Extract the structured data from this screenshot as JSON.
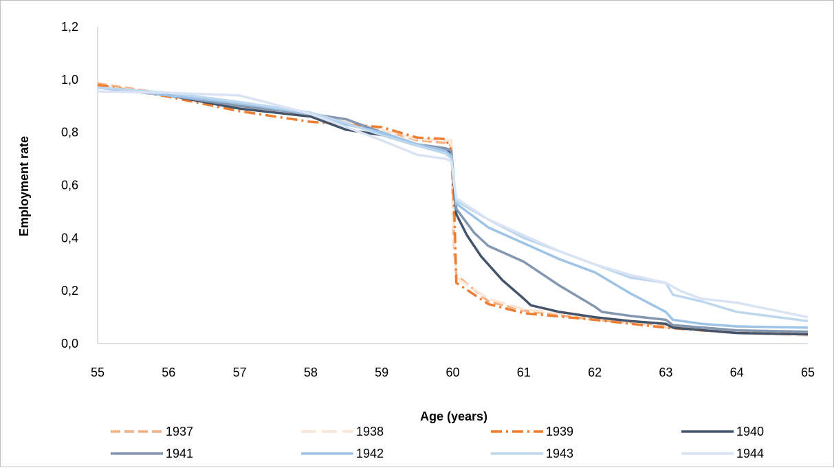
{
  "chart_data": {
    "type": "line",
    "xlabel": "Age (years)",
    "ylabel": "Employment rate",
    "xlim": [
      55,
      65
    ],
    "ylim": [
      0.0,
      1.2
    ],
    "x_ticks": [
      55,
      56,
      57,
      58,
      59,
      60,
      61,
      62,
      63,
      64,
      65
    ],
    "x_tick_labels": [
      "55",
      "56",
      "57",
      "58",
      "59",
      "60",
      "61",
      "62",
      "63",
      "64",
      "65"
    ],
    "y_ticks": [
      0.0,
      0.2,
      0.4,
      0.6,
      0.8,
      1.0,
      1.2
    ],
    "y_tick_labels": [
      "0,0",
      "0,2",
      "0,4",
      "0,6",
      "0,8",
      "1,0",
      "1,2"
    ],
    "grid": false,
    "legend_position": "bottom",
    "series": [
      {
        "name": "1937",
        "color": "#f4b183",
        "dash": "dashed",
        "x": [
          55,
          56,
          57,
          58,
          58.5,
          59,
          59.5,
          59.9,
          59.98,
          60.02,
          60.05,
          60.5,
          61,
          62,
          63,
          64,
          65
        ],
        "y": [
          0.985,
          0.945,
          0.91,
          0.87,
          0.84,
          0.81,
          0.77,
          0.76,
          0.75,
          0.35,
          0.26,
          0.16,
          0.125,
          0.09,
          0.07,
          0.045,
          0.035
        ]
      },
      {
        "name": "1938",
        "color": "#fbe5d6",
        "dash": "longdash",
        "x": [
          55,
          56,
          57,
          58,
          58.5,
          59,
          59.5,
          59.9,
          59.98,
          60.02,
          60.05,
          60.5,
          61,
          62,
          63,
          64,
          65
        ],
        "y": [
          0.98,
          0.94,
          0.9,
          0.865,
          0.84,
          0.81,
          0.775,
          0.77,
          0.77,
          0.4,
          0.25,
          0.17,
          0.13,
          0.1,
          0.06,
          0.04,
          0.03
        ]
      },
      {
        "name": "1939",
        "color": "#ed7d31",
        "dash": "dashdot",
        "x": [
          55,
          56,
          57,
          58,
          58.5,
          59,
          59.5,
          59.9,
          59.98,
          60.02,
          60.05,
          60.5,
          61,
          62,
          63,
          64,
          65
        ],
        "y": [
          0.98,
          0.935,
          0.88,
          0.84,
          0.83,
          0.82,
          0.78,
          0.775,
          0.73,
          0.52,
          0.23,
          0.15,
          0.115,
          0.09,
          0.06,
          0.04,
          0.035
        ]
      },
      {
        "name": "1940",
        "color": "#44546a",
        "dash": "solid",
        "x": [
          55,
          56,
          57,
          58,
          58.5,
          59,
          59.5,
          59.9,
          59.98,
          60.05,
          60.2,
          60.4,
          60.7,
          61,
          61.1,
          61.5,
          62,
          62.5,
          63,
          63.1,
          64,
          65
        ],
        "y": [
          0.97,
          0.94,
          0.89,
          0.86,
          0.81,
          0.79,
          0.75,
          0.735,
          0.72,
          0.49,
          0.41,
          0.33,
          0.24,
          0.17,
          0.145,
          0.12,
          0.1,
          0.085,
          0.075,
          0.06,
          0.04,
          0.035
        ]
      },
      {
        "name": "1941",
        "color": "#8497b0",
        "dash": "solid",
        "x": [
          55,
          56,
          57,
          58,
          58.5,
          59,
          59.5,
          59.9,
          59.98,
          60.05,
          60.3,
          60.5,
          61,
          61.5,
          62,
          62.1,
          62.5,
          63,
          63.1,
          64,
          65
        ],
        "y": [
          0.97,
          0.94,
          0.9,
          0.87,
          0.85,
          0.8,
          0.755,
          0.74,
          0.73,
          0.51,
          0.42,
          0.37,
          0.31,
          0.22,
          0.14,
          0.12,
          0.105,
          0.09,
          0.07,
          0.05,
          0.045
        ]
      },
      {
        "name": "1942",
        "color": "#9dc3e6",
        "dash": "solid",
        "x": [
          55,
          56,
          57,
          58,
          58.5,
          59,
          59.5,
          59.9,
          59.98,
          60.05,
          60.5,
          61,
          61.5,
          62,
          62.5,
          63,
          63.1,
          63.5,
          64,
          65
        ],
        "y": [
          0.97,
          0.94,
          0.91,
          0.87,
          0.83,
          0.8,
          0.755,
          0.73,
          0.71,
          0.53,
          0.44,
          0.38,
          0.32,
          0.27,
          0.19,
          0.12,
          0.09,
          0.075,
          0.065,
          0.06
        ]
      },
      {
        "name": "1943",
        "color": "#bdd7ee",
        "dash": "solid",
        "x": [
          55,
          56,
          57,
          58,
          58.5,
          59,
          59.5,
          59.9,
          59.98,
          60.05,
          60.5,
          61,
          61.5,
          62,
          62.5,
          63,
          63.1,
          63.5,
          64,
          65
        ],
        "y": [
          0.97,
          0.95,
          0.915,
          0.875,
          0.835,
          0.79,
          0.75,
          0.72,
          0.7,
          0.54,
          0.47,
          0.4,
          0.35,
          0.3,
          0.25,
          0.23,
          0.185,
          0.16,
          0.12,
          0.085
        ]
      },
      {
        "name": "1944",
        "color": "#dae3f3",
        "dash": "solid",
        "x": [
          55,
          56,
          57,
          58,
          58.5,
          59,
          59.5,
          59.9,
          59.98,
          60.05,
          60.5,
          61,
          61.5,
          62,
          62.5,
          63,
          63.2,
          63.5,
          64,
          65
        ],
        "y": [
          0.955,
          0.95,
          0.94,
          0.87,
          0.82,
          0.77,
          0.715,
          0.7,
          0.69,
          0.55,
          0.47,
          0.41,
          0.35,
          0.3,
          0.26,
          0.23,
          0.2,
          0.17,
          0.155,
          0.1
        ]
      }
    ]
  }
}
